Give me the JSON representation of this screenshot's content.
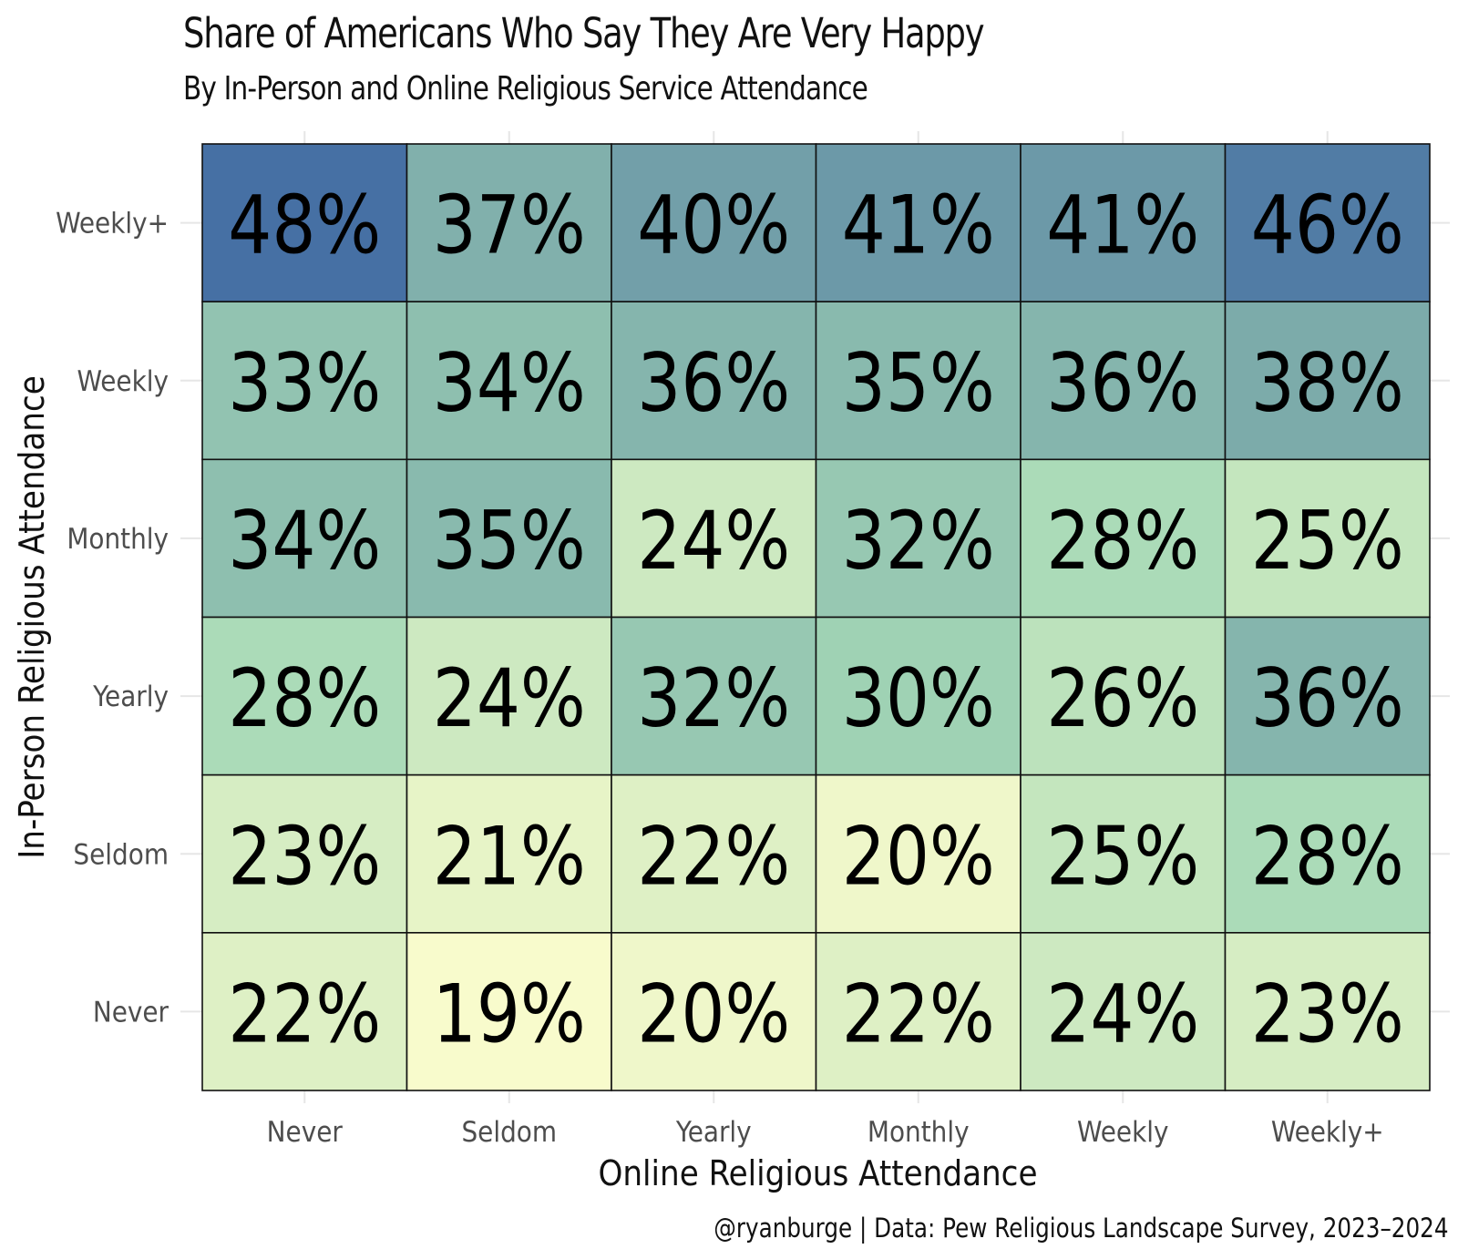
{
  "chart_data": {
    "type": "heatmap",
    "title": "Share of Americans Who Say They Are Very Happy",
    "subtitle": "By In-Person and Online Religious Service Attendance",
    "xlabel": "Online Religious Attendance",
    "ylabel": "In-Person Religious Attendance",
    "x_categories": [
      "Never",
      "Seldom",
      "Yearly",
      "Monthly",
      "Weekly",
      "Weekly+"
    ],
    "y_categories": [
      "Weekly+",
      "Weekly",
      "Monthly",
      "Yearly",
      "Seldom",
      "Never"
    ],
    "values": [
      [
        48,
        37,
        40,
        41,
        41,
        46
      ],
      [
        33,
        34,
        36,
        35,
        36,
        38
      ],
      [
        34,
        35,
        24,
        32,
        28,
        25
      ],
      [
        28,
        24,
        32,
        30,
        26,
        36
      ],
      [
        23,
        21,
        22,
        20,
        25,
        28
      ],
      [
        22,
        19,
        20,
        22,
        24,
        23
      ]
    ],
    "value_suffix": "%",
    "color_scale": [
      "#f8fbcc",
      "#a5d9b6",
      "#7ba9aa",
      "#4670a4"
    ],
    "grid": true,
    "caption": "@ryanburge | Data: Pew Religious Landscape Survey, 2023–2024"
  }
}
